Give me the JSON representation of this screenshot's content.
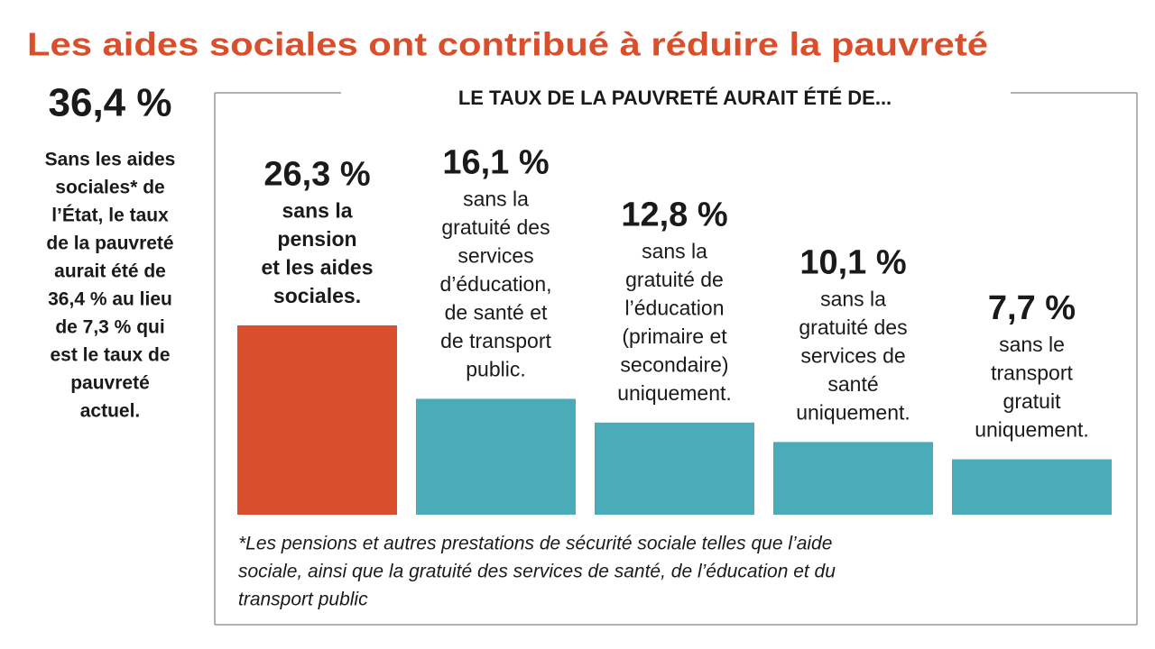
{
  "chart_data": {
    "type": "bar",
    "title": "Les aides sociales ont contribué à réduire la pauvreté",
    "subtitle": "LE TAUX DE LA PAUVRETÉ AURAIT ÉTÉ DE...",
    "headline": "36,4 %",
    "note": [
      "Sans les aides",
      "sociales* de",
      "l’État, le taux",
      "de la pauvreté",
      "aurait été de",
      "36,4 % au lieu",
      "de 7,3 % qui",
      "est le taux de",
      "pauvreté",
      "actuel."
    ],
    "categories": [
      [
        "sans la",
        "pension",
        "et les aides",
        "sociales."
      ],
      [
        "sans la",
        "gratuité des",
        "services",
        "d’éducation,",
        "de santé et",
        "de transport",
        "public."
      ],
      [
        "sans la",
        "gratuité de",
        "l’éducation",
        "(primaire et",
        "secondaire)",
        "uniquement."
      ],
      [
        "sans la",
        "gratuité des",
        "services de",
        "santé",
        "uniquement."
      ],
      [
        "sans le",
        "transport",
        "gratuit",
        "uniquement."
      ]
    ],
    "values": [
      26.3,
      16.1,
      12.8,
      10.1,
      7.7
    ],
    "value_labels": [
      "26,3 %",
      "16,1 %",
      "12,8 %",
      "10,1 %",
      "7,7 %"
    ],
    "colors": [
      "#d94f2b",
      "#4aacb8",
      "#4aacb8",
      "#4aacb8",
      "#4aacb8"
    ],
    "footnote": [
      "*Les pensions et autres prestations de sécurité sociale telles que l’aide",
      "sociale, ainsi que la gratuité des services de santé, de l’éducation et du",
      "transport public"
    ]
  }
}
